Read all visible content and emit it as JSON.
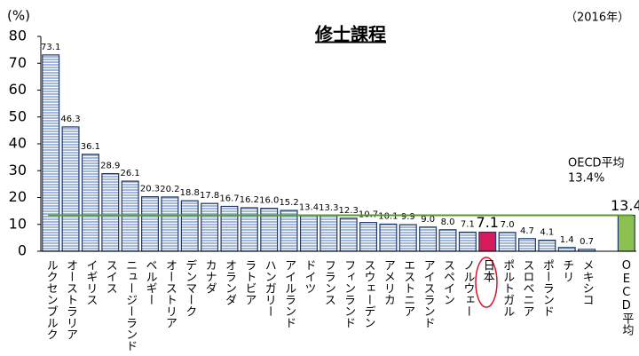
{
  "chart_data": {
    "type": "bar",
    "title": "修士課程",
    "y_unit": "(%)",
    "year_note": "（2016年）",
    "annotation": [
      "OECD平均",
      "13.4%"
    ],
    "categories": [
      "ルクセンブルク",
      "オーストラリア",
      "イギリス",
      "スイス",
      "ニュージーランド",
      "ベルギー",
      "オーストリア",
      "デンマーク",
      "カナダ",
      "オランダ",
      "ラトビア",
      "ハンガリー",
      "アイルランド",
      "ドイツ",
      "フランス",
      "フィンランド",
      "スウェーデン",
      "アメリカ",
      "エストニア",
      "アイスランド",
      "スペイン",
      "ノルウェー",
      "日本",
      "ポルトガル",
      "スロベニア",
      "ポーランド",
      "チリ",
      "メキシコ",
      null,
      "OECD平均"
    ],
    "values": [
      73.1,
      46.3,
      36.1,
      28.9,
      26.1,
      20.3,
      20.2,
      18.8,
      17.8,
      16.7,
      16.2,
      16.0,
      15.2,
      13.4,
      13.3,
      12.3,
      10.7,
      10.1,
      9.9,
      9.0,
      8.0,
      7.1,
      7.1,
      7.0,
      4.7,
      4.1,
      1.4,
      0.7,
      null,
      13.4
    ],
    "value_labels": [
      "73.1",
      "46.3",
      "36.1",
      "28.9",
      "26.1",
      "20.3",
      "20.2",
      "18.8",
      "17.8",
      "16.7",
      "16.2",
      "16.0",
      "15.2",
      "13.4",
      "13.3",
      "12.3",
      "10.7",
      "10.1",
      "9.9",
      "9.0",
      "8.0",
      "7.1",
      "7.1",
      "7.0",
      "4.7",
      "4.1",
      "1.4",
      "0.7",
      null,
      "13.4"
    ],
    "color": "#a3b8de",
    "colors": [
      "#a3b8de",
      "#a3b8de",
      "#a3b8de",
      "#a3b8de",
      "#a3b8de",
      "#a3b8de",
      "#a3b8de",
      "#a3b8de",
      "#a3b8de",
      "#a3b8de",
      "#a3b8de",
      "#a3b8de",
      "#a3b8de",
      "#a3b8de",
      "#a3b8de",
      "#a3b8de",
      "#a3b8de",
      "#a3b8de",
      "#a3b8de",
      "#a3b8de",
      "#a3b8de",
      "#a3b8de",
      "#d81b5a",
      "#a3b8de",
      "#a3b8de",
      "#a3b8de",
      "#a3b8de",
      "#a3b8de",
      null,
      "#8cc152"
    ],
    "reference_line_color": "#5a9a2a",
    "ylim": [
      0,
      80
    ],
    "yticks": [
      0,
      10,
      20,
      30,
      40,
      50,
      60,
      70,
      80
    ]
  }
}
